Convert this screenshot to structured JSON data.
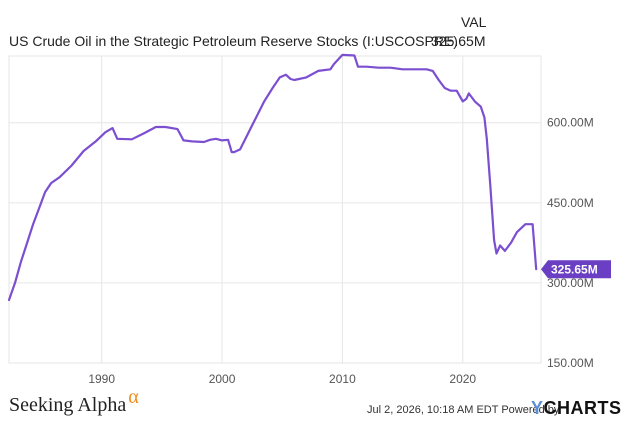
{
  "header": {
    "column_label": "VAL",
    "series_name": "US Crude Oil in the Strategic Petroleum Reserve Stocks (I:USCOSPRE)",
    "series_value": "325.65M"
  },
  "footer": {
    "brand": "Seeking Alpha",
    "brand_mark": "α",
    "timestamp": "Jul 2, 2026, 10:18 AM EDT",
    "powered_by": "Powered by",
    "ycharts": "YCHARTS",
    "ycharts_accent": "Y",
    "ycharts_rest": "CHARTS"
  },
  "colors": {
    "line": "#7b4fd0",
    "badge": "#6a3fc4",
    "grid": "#e6e6e6",
    "axis_text": "#555555",
    "brand_alpha": "#f28c1c",
    "ycharts_y": "#5b8fd6"
  },
  "chart_data": {
    "type": "line",
    "title": "US Crude Oil in the Strategic Petroleum Reserve Stocks (I:USCOSPRE)",
    "xlabel": "",
    "ylabel": "",
    "xlim": [
      1982.3,
      2026.5
    ],
    "ylim": [
      150,
      725
    ],
    "x_ticks": [
      1990,
      2000,
      2010,
      2020
    ],
    "x_tick_labels": [
      "1990",
      "2000",
      "2010",
      "2020"
    ],
    "y_ticks": [
      150,
      300,
      450,
      600
    ],
    "y_tick_labels": [
      "150.00M",
      "300.00M",
      "450.00M",
      "600.00M"
    ],
    "grid": true,
    "last_value_label": "325.65M",
    "series": [
      {
        "values_unit": "millions of barrels",
        "x": [
          1982.3,
          1982.8,
          1983.3,
          1983.8,
          1984.3,
          1984.8,
          1985.3,
          1985.8,
          1986.5,
          1987.5,
          1988.5,
          1989.5,
          1990.3,
          1990.9,
          1991.3,
          1992.5,
          1993.5,
          1994.5,
          1995.3,
          1996.3,
          1996.8,
          1997.5,
          1998.5,
          1999.0,
          1999.5,
          2000.0,
          2000.5,
          2000.8,
          2001.0,
          2001.5,
          2002.5,
          2003.5,
          2004.2,
          2004.8,
          2005.3,
          2005.7,
          2006.0,
          2007.0,
          2008.0,
          2009.0,
          2009.3,
          2010.0,
          2011.0,
          2011.3,
          2012.0,
          2013.0,
          2014.0,
          2015.0,
          2016.0,
          2017.0,
          2017.5,
          2018.0,
          2018.5,
          2019.0,
          2019.5,
          2020.0,
          2020.3,
          2020.5,
          2021.0,
          2021.5,
          2021.8,
          2022.0,
          2022.3,
          2022.6,
          2022.8,
          2023.1,
          2023.5,
          2024.0,
          2024.5,
          2025.2,
          2025.8,
          2026.1
        ],
        "values": [
          268,
          300,
          340,
          375,
          410,
          440,
          470,
          487,
          498,
          520,
          547,
          565,
          582,
          590,
          570,
          569,
          580,
          592,
          592,
          588,
          567,
          565,
          564,
          568,
          570,
          567,
          568,
          545,
          545,
          550,
          595,
          640,
          665,
          685,
          690,
          682,
          680,
          685,
          697,
          700,
          710,
          727,
          726,
          705,
          705,
          703,
          703,
          700,
          700,
          700,
          697,
          680,
          665,
          660,
          660,
          640,
          645,
          655,
          640,
          630,
          610,
          570,
          480,
          380,
          355,
          370,
          360,
          375,
          395,
          410,
          410,
          325.65
        ]
      }
    ]
  }
}
